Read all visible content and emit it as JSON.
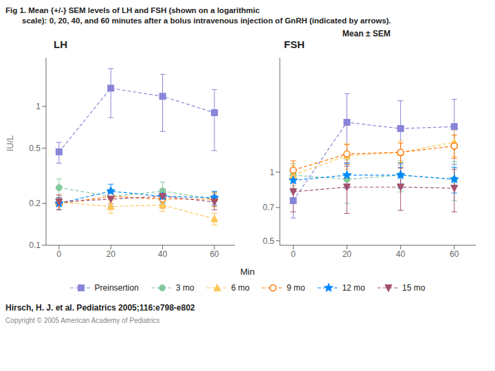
{
  "title": [
    "Fig 1. Mean {+/-} SEM levels of LH and FSH (shown on a logarithmic",
    "scale): 0, 20, 40, and 60 minutes after a bolus intravenous injection of GnRH (indicated by arrows)."
  ],
  "subtitle": "Hirsch, H. J. et al. Pediatrics 2005;116:e798-e802",
  "annotations": [
    "Mean ± SEM",
    "Copyright © 2005 American Academy of Pediatrics"
  ],
  "xlabel": "Min",
  "chart_data": [
    {
      "type": "line",
      "title": "LH",
      "ylabel": "IU/L",
      "log": "y",
      "grid": false,
      "x": [
        0,
        20,
        40,
        60
      ],
      "xlim": [
        -5,
        68
      ],
      "xticks": [
        0,
        20,
        40,
        60
      ],
      "ylim": [
        0.1,
        2.238721138568339
      ],
      "yticks": [
        0.1,
        0.2,
        0.5,
        1
      ],
      "series": [
        {
          "name": "Preinsertion",
          "color": "#8884d8",
          "marker": "square",
          "line_style": "dashed",
          "values": [
            0.47,
            1.35,
            1.18,
            0.9
          ],
          "errors": [
            0.08,
            0.52,
            0.52,
            0.42
          ]
        },
        {
          "name": "3 mo",
          "color": "#82ca9d",
          "marker": "circle",
          "line_style": "dashed",
          "values": [
            0.26,
            0.225,
            0.245,
            0.215
          ],
          "errors": [
            0.04,
            0.03,
            0.04,
            0.025
          ]
        },
        {
          "name": "6 mo",
          "color": "#ffc658",
          "marker": "triangle",
          "line_style": "dashed",
          "values": [
            0.205,
            0.19,
            0.195,
            0.155
          ],
          "errors": [
            0.025,
            0.02,
            0.02,
            0.015
          ]
        },
        {
          "name": "9 mo",
          "color": "#ff7300",
          "marker": "circle-open",
          "line_style": "dashed",
          "values": [
            0.2,
            0.225,
            0.215,
            0.215
          ],
          "errors": [
            0.02,
            0.025,
            0.03,
            0.025
          ]
        },
        {
          "name": "12 mo",
          "color": "#0088fe",
          "marker": "star",
          "line_style": "dashed",
          "values": [
            0.2,
            0.245,
            0.225,
            0.22
          ],
          "errors": [
            0.02,
            0.03,
            0.025,
            0.025
          ]
        },
        {
          "name": "15 mo",
          "color": "#a4506c",
          "marker": "triangle-down",
          "line_style": "dashed",
          "values": [
            0.205,
            0.215,
            0.225,
            0.205
          ],
          "errors": [
            0.025,
            0.025,
            0.03,
            0.025
          ]
        }
      ]
    },
    {
      "type": "line",
      "title": "FSH",
      "log": "y",
      "grid": false,
      "legend": "bottom",
      "x": [
        0,
        20,
        40,
        60
      ],
      "xlim": [
        -5,
        68
      ],
      "xticks": [
        0,
        20,
        40,
        60
      ],
      "ylim": [
        0.47863009232263837,
        3.1622776601683795
      ],
      "yticks": [
        0.5,
        0.7,
        1
      ],
      "series": [
        {
          "name": "Preinsertion",
          "color": "#8884d8",
          "marker": "square",
          "line_style": "dashed",
          "values": [
            0.75,
            1.65,
            1.55,
            1.58
          ],
          "errors": [
            0.12,
            0.55,
            0.5,
            0.5
          ]
        },
        {
          "name": "3 mo",
          "color": "#82ca9d",
          "marker": "circle",
          "line_style": "dashed",
          "values": [
            0.97,
            0.93,
            0.97,
            0.93
          ],
          "errors": [
            0.12,
            0.2,
            0.15,
            0.18
          ]
        },
        {
          "name": "6 mo",
          "color": "#ffc658",
          "marker": "triangle",
          "line_style": "dashed",
          "values": [
            0.97,
            1.18,
            1.22,
            1.35
          ],
          "errors": [
            0.1,
            0.15,
            0.15,
            0.18
          ]
        },
        {
          "name": "9 mo",
          "color": "#ff7300",
          "marker": "circle-open",
          "line_style": "dashed",
          "values": [
            1.02,
            1.2,
            1.22,
            1.3
          ],
          "errors": [
            0.1,
            0.12,
            0.12,
            0.15
          ]
        },
        {
          "name": "12 mo",
          "color": "#0088fe",
          "marker": "star",
          "line_style": "dashed",
          "values": [
            0.92,
            0.97,
            0.97,
            0.93
          ],
          "errors": [
            0.1,
            0.12,
            0.12,
            0.12
          ]
        },
        {
          "name": "15 mo",
          "color": "#a4506c",
          "marker": "triangle-down",
          "line_style": "dashed",
          "values": [
            0.82,
            0.86,
            0.86,
            0.85
          ],
          "errors": [
            0.15,
            0.2,
            0.18,
            0.18
          ]
        }
      ]
    }
  ]
}
